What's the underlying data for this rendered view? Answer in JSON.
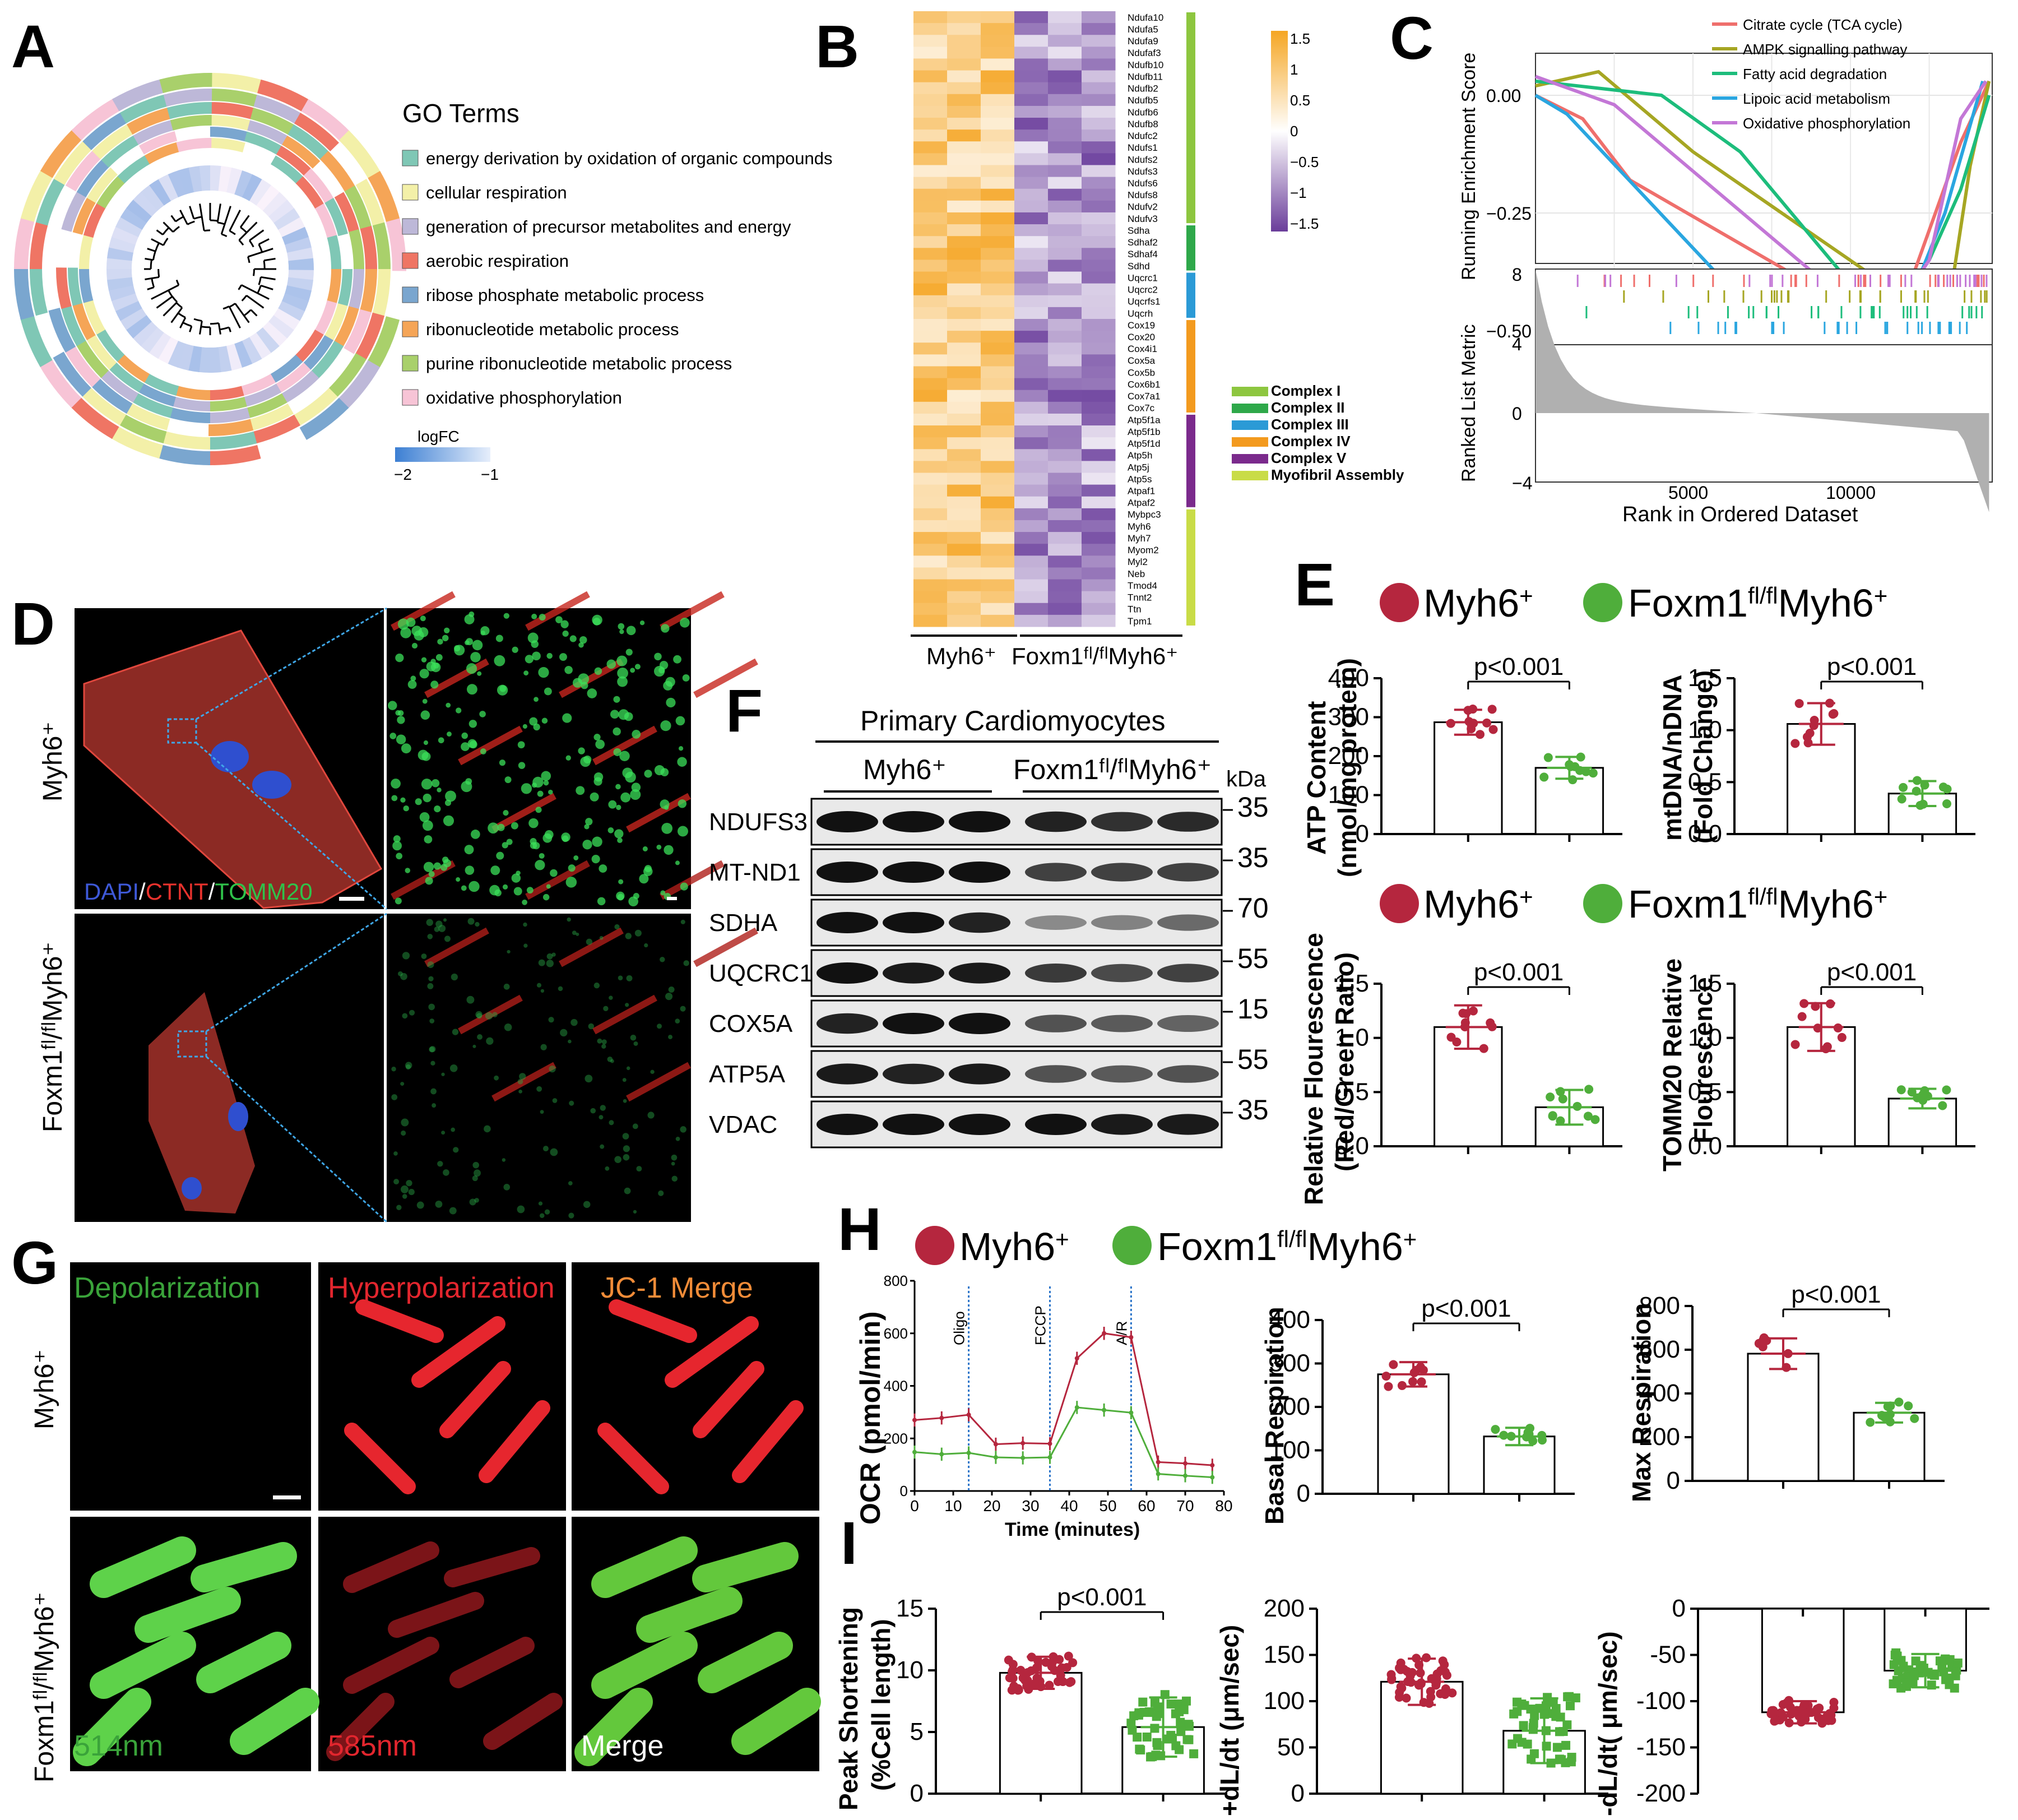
{
  "panels": {
    "A": "A",
    "B": "B",
    "C": "C",
    "D": "D",
    "E": "E",
    "F": "F",
    "G": "G",
    "H": "H",
    "I": "I"
  },
  "colors": {
    "myh6": "#b5263e",
    "foxm1": "#4fae3b",
    "heat_high": "#f5a623",
    "heat_low": "#6a3d9a"
  },
  "legend": {
    "myh6": "Myh6",
    "foxm1": "Foxm1",
    "fl": "fl/fl",
    "plus": "+"
  },
  "panelA": {
    "title": "GO Terms",
    "terms": [
      {
        "label": "energy derivation by oxidation of organic compounds",
        "color": "#7fc7b5"
      },
      {
        "label": "cellular respiration",
        "color": "#f3f0a8"
      },
      {
        "label": "generation of precursor metabolites and energy",
        "color": "#bdb8d8"
      },
      {
        "label": "aerobic respiration",
        "color": "#ef7564"
      },
      {
        "label": "ribose phosphate metabolic process",
        "color": "#7aa6cf"
      },
      {
        "label": "ribonucleotide metabolic process",
        "color": "#f5a557"
      },
      {
        "label": "purine ribonucleotide metabolic process",
        "color": "#a9d06b"
      },
      {
        "label": "oxidative phosphorylation",
        "color": "#f7c4d6"
      }
    ],
    "logfc_title": "logFC",
    "logfc_min": "−2",
    "logfc_max": "−1"
  },
  "panelB": {
    "genes": [
      "Ndufa10",
      "Ndufa5",
      "Ndufa9",
      "Ndufaf3",
      "Ndufb10",
      "Ndufb11",
      "Ndufb2",
      "Ndufb5",
      "Ndufb6",
      "Ndufb8",
      "Ndufc2",
      "Ndufs1",
      "Ndufs2",
      "Ndufs3",
      "Ndufs6",
      "Ndufs8",
      "Ndufv2",
      "Ndufv3",
      "Sdha",
      "Sdhaf2",
      "Sdhaf4",
      "Sdhd",
      "Uqcrc1",
      "Uqcrc2",
      "Uqcrfs1",
      "Uqcrh",
      "Cox19",
      "Cox20",
      "Cox4i1",
      "Cox5a",
      "Cox5b",
      "Cox6b1",
      "Cox7a1",
      "Cox7c",
      "Atp5f1a",
      "Atp5f1b",
      "Atp5f1d",
      "Atp5h",
      "Atp5j",
      "Atp5s",
      "Atpaf1",
      "Atpaf2",
      "Mybpc3",
      "Myh6",
      "Myh7",
      "Myom2",
      "Myl2",
      "Neb",
      "Tmod4",
      "Tnnt2",
      "Ttn",
      "Tpm1"
    ],
    "scale": [
      "1.5",
      "1",
      "0.5",
      "0",
      "−0.5",
      "−1",
      "−1.5"
    ],
    "complexes": [
      {
        "label": "Complex I",
        "color": "#8dc63f"
      },
      {
        "label": "Complex II",
        "color": "#2ea84a"
      },
      {
        "label": "Complex III",
        "color": "#2b9ad6"
      },
      {
        "label": "Complex IV",
        "color": "#f39a1e"
      },
      {
        "label": "Complex V",
        "color": "#7b2a8c"
      },
      {
        "label": "Myofibril Assembly",
        "color": "#c9dc47"
      }
    ],
    "group1": "Myh6⁺",
    "group2": "Foxm1ᶠˡ/ᶠˡMyh6⁺"
  },
  "panelC": {
    "ylabel_top": "Running Enrichment Score",
    "ylabel_bottom": "Ranked List Metric",
    "xlabel": "Rank in Ordered Dataset",
    "yticks_top": [
      "0.00",
      "−0.25",
      "−0.50"
    ],
    "yticks_bottom": [
      "8",
      "4",
      "0",
      "−4"
    ],
    "xticks": [
      "5000",
      "10000"
    ],
    "series": [
      {
        "name": "Citrate cycle (TCA cycle)",
        "color": "#ef6f6c"
      },
      {
        "name": "AMPK signalling pathway",
        "color": "#a6a623"
      },
      {
        "name": "Fatty acid degradation",
        "color": "#1dbd7c"
      },
      {
        "name": "Lipoic acid metabolism",
        "color": "#2aa6e0"
      },
      {
        "name": "Oxidative phosphorylation",
        "color": "#c377d6"
      }
    ]
  },
  "panelD": {
    "row1": "Myh6⁺",
    "row2": "Foxm1ᶠˡ/ᶠˡMyh6⁺",
    "stain_dapi": "DAPI",
    "stain_ctnt": "CTNT",
    "stain_tomm": "TOMM20",
    "sep": "/"
  },
  "panelE": {
    "pval": "p<0.001",
    "atp": {
      "ylabel1": "ATP Content",
      "ylabel2": "(nmol/mg protein)",
      "ticks": [
        "0",
        "100",
        "200",
        "300",
        "400"
      ],
      "myh6": 287,
      "foxm1": 170,
      "max": 400
    },
    "mtdna": {
      "ylabel1": "mtDNA/nDNA",
      "ylabel2": "(Fold Change)",
      "ticks": [
        "0.0",
        "0.5",
        "1.0",
        "1.5"
      ],
      "myh6": 1.06,
      "foxm1": 0.39,
      "max": 1.5
    },
    "rf": {
      "ylabel1": "Relative Flourescence",
      "ylabel2": "(Red/Green Ratio)",
      "ticks": [
        "0.0",
        "0.5",
        "1.0",
        "1.5"
      ],
      "myh6": 1.1,
      "foxm1": 0.36,
      "max": 1.5
    },
    "tomm": {
      "ylabel1": "TOMM20 Relative",
      "ylabel2": "Flourescence",
      "ticks": [
        "0.0",
        "0.5",
        "1.0",
        "1.5"
      ],
      "myh6": 1.1,
      "foxm1": 0.44,
      "max": 1.5
    }
  },
  "panelF": {
    "title": "Primary Cardiomyocytes",
    "group1": "Myh6⁺",
    "group2": "Foxm1ᶠˡ/ᶠˡMyh6⁺",
    "kda": "kDa",
    "rows": [
      {
        "label": "NDUFS3",
        "mw": "35"
      },
      {
        "label": "MT-ND1",
        "mw": "35"
      },
      {
        "label": "SDHA",
        "mw": "70"
      },
      {
        "label": "UQCRC1",
        "mw": "55"
      },
      {
        "label": "COX5A",
        "mw": "15"
      },
      {
        "label": "ATP5A",
        "mw": "55"
      },
      {
        "label": "VDAC",
        "mw": "35"
      }
    ]
  },
  "panelG": {
    "col1": "Depolarization",
    "col2": "Hyperpolarization",
    "col3": "JC-1 Merge",
    "row1": "Myh6⁺",
    "row2": "Foxm1ᶠˡ/ᶠˡMyh6⁺",
    "b1": "514nm",
    "b2": "585nm",
    "b3": "Merge"
  },
  "panelH": {
    "ocr_ylabel": "OCR (pmol/min)",
    "xlabel": "Time (minutes)",
    "xticks": [
      "0",
      "10",
      "20",
      "30",
      "40",
      "50",
      "60",
      "70",
      "80"
    ],
    "yticks": [
      "0",
      "200",
      "400",
      "600",
      "800"
    ],
    "inject": [
      "Oligo",
      "FCCP",
      "A/R"
    ],
    "pval": "p<0.001",
    "basal": {
      "ylabel": "Basal Respiration",
      "ticks": [
        "0",
        "100",
        "200",
        "300",
        "400"
      ],
      "myh6": 275,
      "foxm1": 132,
      "max": 400
    },
    "max": {
      "ylabel": "Max Respiration",
      "ticks": [
        "0",
        "200",
        "400",
        "600",
        "800"
      ],
      "myh6": 582,
      "foxm1": 312,
      "max": 800
    }
  },
  "panelI": {
    "pval": "p<0.001",
    "ps": {
      "ylabel1": "Peak Shortening",
      "ylabel2": "(%Cell length)",
      "ticks": [
        "0",
        "5",
        "10",
        "15"
      ],
      "myh6": 9.8,
      "foxm1": 5.4,
      "max": 15
    },
    "pdl": {
      "ylabel": "+dL/dt (μm/sec)",
      "ticks": [
        "0",
        "50",
        "100",
        "150",
        "200"
      ],
      "myh6": 121,
      "foxm1": 68,
      "max": 200
    },
    "ndl": {
      "ylabel": "-dL/dt( μm/sec)",
      "ticks": [
        "0",
        "-50",
        "-100",
        "-150",
        "-200"
      ],
      "myh6": -112,
      "foxm1": -67,
      "min": -200
    }
  },
  "chart_data": [
    {
      "type": "bar",
      "id": "E-atp",
      "categories": [
        "Myh6+",
        "Foxm1fl/flMyh6+"
      ],
      "values": [
        287,
        170
      ],
      "ylabel": "ATP Content (nmol/mg protein)",
      "ylim": [
        0,
        400
      ]
    },
    {
      "type": "bar",
      "id": "E-mtdna",
      "categories": [
        "Myh6+",
        "Foxm1fl/flMyh6+"
      ],
      "values": [
        1.06,
        0.39
      ],
      "ylabel": "mtDNA/nDNA (Fold Change)",
      "ylim": [
        0,
        1.5
      ]
    },
    {
      "type": "bar",
      "id": "E-rf",
      "categories": [
        "Myh6+",
        "Foxm1fl/flMyh6+"
      ],
      "values": [
        1.1,
        0.36
      ],
      "ylabel": "Relative Flourescence (Red/Green Ratio)",
      "ylim": [
        0,
        1.5
      ]
    },
    {
      "type": "bar",
      "id": "E-tomm",
      "categories": [
        "Myh6+",
        "Foxm1fl/flMyh6+"
      ],
      "values": [
        1.1,
        0.44
      ],
      "ylabel": "TOMM20 Relative Flourescence",
      "ylim": [
        0,
        1.5
      ]
    },
    {
      "type": "line",
      "id": "H-ocr",
      "x": [
        0,
        7,
        14,
        21,
        28,
        35,
        42,
        49,
        56,
        63,
        70,
        77
      ],
      "series": [
        {
          "name": "Myh6+",
          "values": [
            270,
            278,
            290,
            178,
            182,
            180,
            505,
            600,
            585,
            110,
            105,
            98
          ]
        },
        {
          "name": "Foxm1fl/flMyh6+",
          "values": [
            148,
            140,
            145,
            128,
            126,
            128,
            318,
            308,
            298,
            65,
            58,
            52
          ]
        }
      ],
      "xlabel": "Time (minutes)",
      "ylabel": "OCR (pmol/min)",
      "xlim": [
        0,
        80
      ],
      "ylim": [
        0,
        800
      ]
    },
    {
      "type": "bar",
      "id": "H-basal",
      "categories": [
        "Myh6+",
        "Foxm1fl/flMyh6+"
      ],
      "values": [
        275,
        132
      ],
      "ylabel": "Basal Respiration",
      "ylim": [
        0,
        400
      ]
    },
    {
      "type": "bar",
      "id": "H-max",
      "categories": [
        "Myh6+",
        "Foxm1fl/flMyh6+"
      ],
      "values": [
        582,
        312
      ],
      "ylabel": "Max Respiration",
      "ylim": [
        0,
        800
      ]
    },
    {
      "type": "bar",
      "id": "I-ps",
      "categories": [
        "Myh6+",
        "Foxm1fl/flMyh6+"
      ],
      "values": [
        9.8,
        5.4
      ],
      "ylabel": "Peak Shortening (%Cell length)",
      "ylim": [
        0,
        15
      ]
    },
    {
      "type": "bar",
      "id": "I-pdl",
      "categories": [
        "Myh6+",
        "Foxm1fl/flMyh6+"
      ],
      "values": [
        121,
        68
      ],
      "ylabel": "+dL/dt (μm/sec)",
      "ylim": [
        0,
        200
      ]
    },
    {
      "type": "bar",
      "id": "I-ndl",
      "categories": [
        "Myh6+",
        "Foxm1fl/flMyh6+"
      ],
      "values": [
        -112,
        -67
      ],
      "ylabel": "-dL/dt( μm/sec)",
      "ylim": [
        -200,
        0
      ]
    }
  ]
}
